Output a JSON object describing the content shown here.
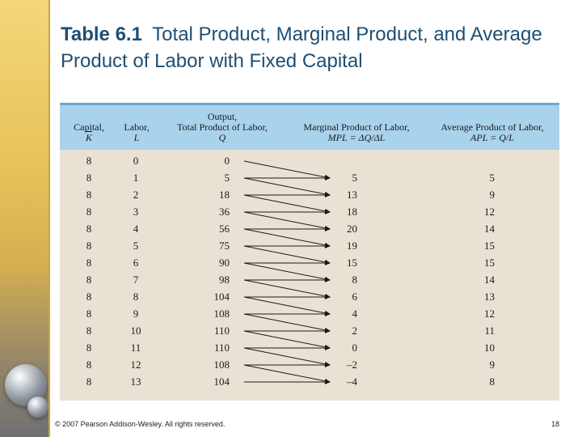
{
  "slide": {
    "title_number": "Table 6.1",
    "title_text": "Total Product, Marginal Product, and Average Product of Labor with Fixed Capital",
    "footer_copyright": "© 2007 Pearson Addison-Wesley. All rights reserved.",
    "page_number": "18"
  },
  "table": {
    "headers": {
      "capital_line1": "Capital,",
      "capital_symbol": "K",
      "labor_line1": "Labor,",
      "labor_symbol": "L",
      "output_line1": "Output,",
      "output_line2": "Total Product of Labor,",
      "output_symbol": "Q",
      "marginal_line1": "Marginal Product of Labor,",
      "marginal_formula": "MPL = ΔQ/ΔL",
      "average_line1": "Average Product of Labor,",
      "average_formula": "APL = Q/L"
    },
    "rows": [
      {
        "capital": "8",
        "labor": "0",
        "output": "0",
        "marginal": "",
        "average": ""
      },
      {
        "capital": "8",
        "labor": "1",
        "output": "5",
        "marginal": "5",
        "average": "5"
      },
      {
        "capital": "8",
        "labor": "2",
        "output": "18",
        "marginal": "13",
        "average": "9"
      },
      {
        "capital": "8",
        "labor": "3",
        "output": "36",
        "marginal": "18",
        "average": "12"
      },
      {
        "capital": "8",
        "labor": "4",
        "output": "56",
        "marginal": "20",
        "average": "14"
      },
      {
        "capital": "8",
        "labor": "5",
        "output": "75",
        "marginal": "19",
        "average": "15"
      },
      {
        "capital": "8",
        "labor": "6",
        "output": "90",
        "marginal": "15",
        "average": "15"
      },
      {
        "capital": "8",
        "labor": "7",
        "output": "98",
        "marginal": "8",
        "average": "14"
      },
      {
        "capital": "8",
        "labor": "8",
        "output": "104",
        "marginal": "6",
        "average": "13"
      },
      {
        "capital": "8",
        "labor": "9",
        "output": "108",
        "marginal": "4",
        "average": "12"
      },
      {
        "capital": "8",
        "labor": "10",
        "output": "110",
        "marginal": "2",
        "average": "11"
      },
      {
        "capital": "8",
        "labor": "11",
        "output": "110",
        "marginal": "0",
        "average": "10"
      },
      {
        "capital": "8",
        "labor": "12",
        "output": "108",
        "marginal": "–2",
        "average": "9"
      },
      {
        "capital": "8",
        "labor": "13",
        "output": "104",
        "marginal": "–4",
        "average": "8"
      }
    ]
  },
  "colors": {
    "title": "#1e4f73",
    "header_bg": "#a9d2ec",
    "table_bg": "#e9e2d4",
    "arrow": "#1a1a1a"
  }
}
